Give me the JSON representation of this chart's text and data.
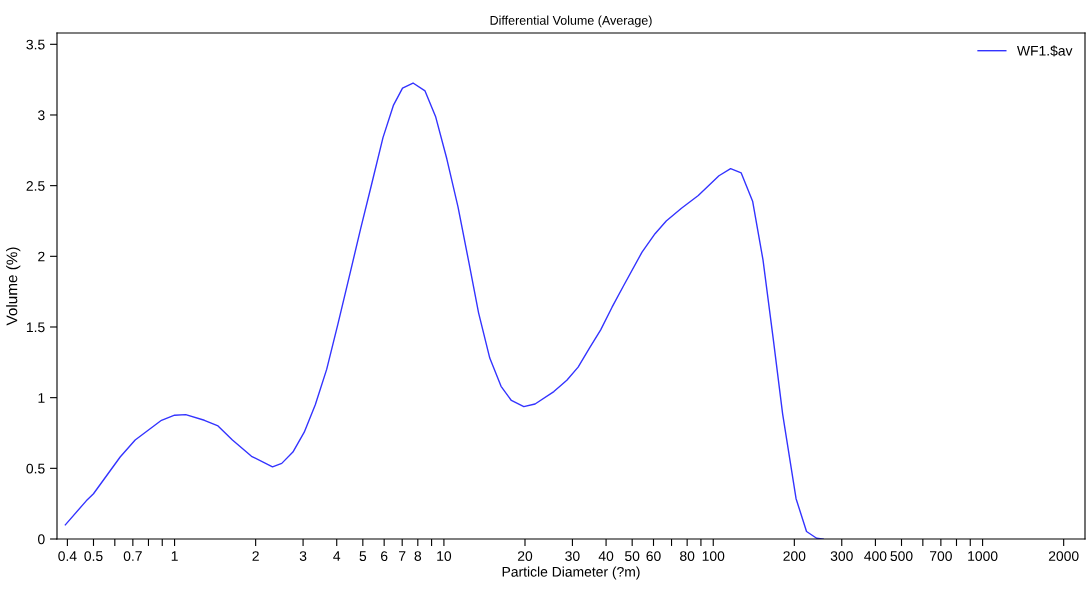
{
  "chart_data": {
    "type": "line",
    "title": "Differential Volume (Average)",
    "xlabel": "Particle Diameter (?m)",
    "ylabel": "Volume (%)",
    "log": "x",
    "grid": false,
    "legend": "top right",
    "marker": "none",
    "line_style": "solid",
    "xlim": [
      0.366,
      2400
    ],
    "ylim": [
      0,
      3.58
    ],
    "xticks": [
      0.4,
      0.5,
      {
        "value": 0.6,
        "label": null
      },
      0.7,
      {
        "value": 0.8,
        "label": null
      },
      {
        "value": 0.9,
        "label": null
      },
      1,
      2,
      3,
      4,
      5,
      6,
      7,
      8,
      {
        "value": 9,
        "label": null
      },
      10,
      20,
      30,
      40,
      50,
      60,
      {
        "value": 70,
        "label": null
      },
      80,
      {
        "value": 90,
        "label": null
      },
      100,
      200,
      300,
      400,
      500,
      {
        "value": 600,
        "label": null
      },
      700,
      {
        "value": 800,
        "label": null
      },
      {
        "value": 900,
        "label": null
      },
      1000,
      2000
    ],
    "yticks": [
      0,
      0.5,
      1,
      1.5,
      2,
      2.5,
      3,
      3.5
    ],
    "series": [
      {
        "name": "WF1.$av",
        "color": "#3333ff",
        "x": [
          0.393,
          0.47,
          0.5,
          0.628,
          0.714,
          0.894,
          1.0,
          1.1,
          1.29,
          1.45,
          1.64,
          1.93,
          2.31,
          2.5,
          2.75,
          3.03,
          3.33,
          3.67,
          4.04,
          4.45,
          4.9,
          5.39,
          5.94,
          6.5,
          7.02,
          7.68,
          8.51,
          9.31,
          10.25,
          11.28,
          12.4,
          13.45,
          14.8,
          16.3,
          17.8,
          19.8,
          21.8,
          25.6,
          28.6,
          31.5,
          34.7,
          38.2,
          42.1,
          46.4,
          54.4,
          60.8,
          66.9,
          76.2,
          88.0,
          105,
          116,
          127,
          140,
          153,
          167,
          181,
          203,
          222,
          242,
          256
        ],
        "values": [
          0.1,
          0.27,
          0.32,
          0.58,
          0.7,
          0.84,
          0.876,
          0.88,
          0.84,
          0.8,
          0.7,
          0.585,
          0.51,
          0.535,
          0.615,
          0.756,
          0.95,
          1.2,
          1.52,
          1.855,
          2.19,
          2.51,
          2.84,
          3.07,
          3.19,
          3.226,
          3.17,
          2.99,
          2.69,
          2.35,
          1.95,
          1.6,
          1.28,
          1.08,
          0.98,
          0.937,
          0.955,
          1.043,
          1.123,
          1.216,
          1.35,
          1.48,
          1.64,
          1.79,
          2.03,
          2.16,
          2.25,
          2.34,
          2.43,
          2.57,
          2.62,
          2.59,
          2.39,
          1.975,
          1.416,
          0.884,
          0.285,
          0.053,
          0.005,
          0
        ]
      }
    ]
  }
}
